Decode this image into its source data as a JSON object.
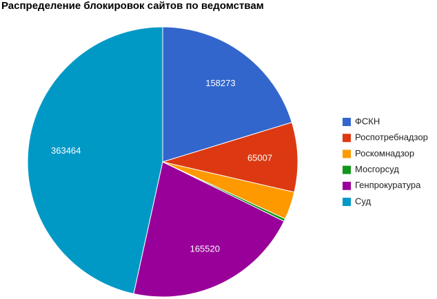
{
  "chart_data": {
    "type": "pie",
    "title": "Распределение блокировок сайтов по ведомствам",
    "categories": [
      "ФСКН",
      "Роспотребнадзор",
      "Роскомнадзор",
      "Мосгорсуд",
      "Генпрокуратура",
      "Суд"
    ],
    "values": [
      158273,
      65007,
      26000,
      2500,
      165520,
      363464
    ],
    "colors": [
      "#3366cc",
      "#dc3912",
      "#ff9900",
      "#109618",
      "#990099",
      "#0099c6"
    ],
    "legend": "right"
  }
}
